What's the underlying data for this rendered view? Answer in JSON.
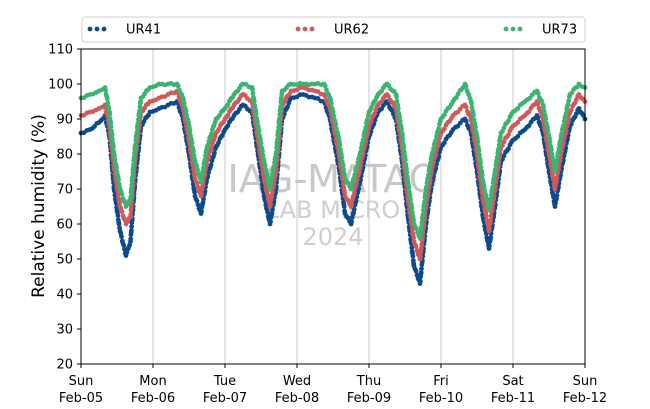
{
  "chart_data": {
    "type": "scatter",
    "title": "",
    "xlabel": "",
    "ylabel": "Relative humidity (%)",
    "ylim": [
      20,
      110
    ],
    "yticks": [
      20,
      30,
      40,
      50,
      60,
      70,
      80,
      90,
      100,
      110
    ],
    "xlim": [
      "2024-02-05 00:00",
      "2024-02-12 00:00"
    ],
    "xticks": [
      {
        "day": "Sun",
        "date": "Feb-05"
      },
      {
        "day": "Mon",
        "date": "Feb-06"
      },
      {
        "day": "Tue",
        "date": "Feb-07"
      },
      {
        "day": "Wed",
        "date": "Feb-08"
      },
      {
        "day": "Thu",
        "date": "Feb-09"
      },
      {
        "day": "Fri",
        "date": "Feb-10"
      },
      {
        "day": "Sat",
        "date": "Feb-11"
      },
      {
        "day": "Sun",
        "date": "Feb-12"
      }
    ],
    "grid": "vertical",
    "legend_placement": "top",
    "watermark": [
      "IAG-MATAO",
      "LAB MICRO",
      "2024"
    ],
    "series": [
      {
        "name": "UR41",
        "color": "#0c4a8c",
        "points": [
          [
            "2024-02-05 00:00",
            86
          ],
          [
            "2024-02-05 03:00",
            87
          ],
          [
            "2024-02-05 06:00",
            89
          ],
          [
            "2024-02-05 08:00",
            91
          ],
          [
            "2024-02-05 09:30",
            85
          ],
          [
            "2024-02-05 11:00",
            70
          ],
          [
            "2024-02-05 13:00",
            58
          ],
          [
            "2024-02-05 15:00",
            51
          ],
          [
            "2024-02-05 16:30",
            55
          ],
          [
            "2024-02-05 18:00",
            72
          ],
          [
            "2024-02-05 20:00",
            88
          ],
          [
            "2024-02-05 23:00",
            92
          ],
          [
            "2024-02-06 02:00",
            93
          ],
          [
            "2024-02-06 05:00",
            94
          ],
          [
            "2024-02-06 08:00",
            95
          ],
          [
            "2024-02-06 10:00",
            90
          ],
          [
            "2024-02-06 12:00",
            80
          ],
          [
            "2024-02-06 14:00",
            68
          ],
          [
            "2024-02-06 16:00",
            63
          ],
          [
            "2024-02-06 18:00",
            73
          ],
          [
            "2024-02-06 21:00",
            82
          ],
          [
            "2024-02-07 00:00",
            87
          ],
          [
            "2024-02-07 03:00",
            91
          ],
          [
            "2024-02-07 06:00",
            94
          ],
          [
            "2024-02-07 09:00",
            92
          ],
          [
            "2024-02-07 11:00",
            80
          ],
          [
            "2024-02-07 13:00",
            68
          ],
          [
            "2024-02-07 15:00",
            60
          ],
          [
            "2024-02-07 17:00",
            70
          ],
          [
            "2024-02-07 19:00",
            90
          ],
          [
            "2024-02-07 22:00",
            96
          ],
          [
            "2024-02-08 02:00",
            97
          ],
          [
            "2024-02-08 06:00",
            96
          ],
          [
            "2024-02-08 09:00",
            95
          ],
          [
            "2024-02-08 11:00",
            90
          ],
          [
            "2024-02-08 14:00",
            76
          ],
          [
            "2024-02-08 16:00",
            63
          ],
          [
            "2024-02-08 18:00",
            60
          ],
          [
            "2024-02-08 21:00",
            72
          ],
          [
            "2024-02-09 00:00",
            85
          ],
          [
            "2024-02-09 03:00",
            92
          ],
          [
            "2024-02-09 06:00",
            95
          ],
          [
            "2024-02-09 09:00",
            90
          ],
          [
            "2024-02-09 11:00",
            78
          ],
          [
            "2024-02-09 13:00",
            62
          ],
          [
            "2024-02-09 15:00",
            48
          ],
          [
            "2024-02-09 17:00",
            43
          ],
          [
            "2024-02-09 19:00",
            60
          ],
          [
            "2024-02-09 21:00",
            72
          ],
          [
            "2024-02-10 00:00",
            82
          ],
          [
            "2024-02-10 04:00",
            87
          ],
          [
            "2024-02-10 08:00",
            90
          ],
          [
            "2024-02-10 10:00",
            86
          ],
          [
            "2024-02-10 12:00",
            75
          ],
          [
            "2024-02-10 14:00",
            62
          ],
          [
            "2024-02-10 16:00",
            53
          ],
          [
            "2024-02-10 18:00",
            65
          ],
          [
            "2024-02-10 20:00",
            78
          ],
          [
            "2024-02-11 00:00",
            84
          ],
          [
            "2024-02-11 04:00",
            87
          ],
          [
            "2024-02-11 08:00",
            91
          ],
          [
            "2024-02-11 10:00",
            86
          ],
          [
            "2024-02-11 12:00",
            75
          ],
          [
            "2024-02-11 14:00",
            65
          ],
          [
            "2024-02-11 16:00",
            75
          ],
          [
            "2024-02-11 19:00",
            88
          ],
          [
            "2024-02-11 22:00",
            93
          ],
          [
            "2024-02-12 00:00",
            90
          ]
        ]
      },
      {
        "name": "UR62",
        "color": "#d05a5a",
        "points": [
          [
            "2024-02-05 00:00",
            91
          ],
          [
            "2024-02-05 03:00",
            92
          ],
          [
            "2024-02-05 06:00",
            93
          ],
          [
            "2024-02-05 08:00",
            94
          ],
          [
            "2024-02-05 09:30",
            88
          ],
          [
            "2024-02-05 11:00",
            76
          ],
          [
            "2024-02-05 13:00",
            65
          ],
          [
            "2024-02-05 15:00",
            60
          ],
          [
            "2024-02-05 16:30",
            62
          ],
          [
            "2024-02-05 18:00",
            78
          ],
          [
            "2024-02-05 20:00",
            92
          ],
          [
            "2024-02-05 23:00",
            95
          ],
          [
            "2024-02-06 02:00",
            96
          ],
          [
            "2024-02-06 05:00",
            97
          ],
          [
            "2024-02-06 08:00",
            98
          ],
          [
            "2024-02-06 10:00",
            93
          ],
          [
            "2024-02-06 12:00",
            84
          ],
          [
            "2024-02-06 14:00",
            73
          ],
          [
            "2024-02-06 16:00",
            68
          ],
          [
            "2024-02-06 18:00",
            78
          ],
          [
            "2024-02-06 21:00",
            86
          ],
          [
            "2024-02-07 00:00",
            90
          ],
          [
            "2024-02-07 03:00",
            94
          ],
          [
            "2024-02-07 06:00",
            97
          ],
          [
            "2024-02-07 09:00",
            95
          ],
          [
            "2024-02-07 11:00",
            84
          ],
          [
            "2024-02-07 13:00",
            73
          ],
          [
            "2024-02-07 15:00",
            65
          ],
          [
            "2024-02-07 17:00",
            75
          ],
          [
            "2024-02-07 19:00",
            94
          ],
          [
            "2024-02-07 22:00",
            98
          ],
          [
            "2024-02-08 02:00",
            99
          ],
          [
            "2024-02-08 06:00",
            98
          ],
          [
            "2024-02-08 09:00",
            97
          ],
          [
            "2024-02-08 11:00",
            93
          ],
          [
            "2024-02-08 14:00",
            80
          ],
          [
            "2024-02-08 16:00",
            68
          ],
          [
            "2024-02-08 18:00",
            65
          ],
          [
            "2024-02-08 21:00",
            76
          ],
          [
            "2024-02-09 00:00",
            88
          ],
          [
            "2024-02-09 03:00",
            94
          ],
          [
            "2024-02-09 06:00",
            97
          ],
          [
            "2024-02-09 09:00",
            93
          ],
          [
            "2024-02-09 11:00",
            82
          ],
          [
            "2024-02-09 13:00",
            67
          ],
          [
            "2024-02-09 15:00",
            55
          ],
          [
            "2024-02-09 17:00",
            50
          ],
          [
            "2024-02-09 19:00",
            65
          ],
          [
            "2024-02-09 21:00",
            76
          ],
          [
            "2024-02-10 00:00",
            86
          ],
          [
            "2024-02-10 04:00",
            91
          ],
          [
            "2024-02-10 08:00",
            94
          ],
          [
            "2024-02-10 10:00",
            90
          ],
          [
            "2024-02-10 12:00",
            80
          ],
          [
            "2024-02-10 14:00",
            67
          ],
          [
            "2024-02-10 16:00",
            58
          ],
          [
            "2024-02-10 18:00",
            70
          ],
          [
            "2024-02-10 20:00",
            82
          ],
          [
            "2024-02-11 00:00",
            88
          ],
          [
            "2024-02-11 04:00",
            91
          ],
          [
            "2024-02-11 08:00",
            95
          ],
          [
            "2024-02-11 10:00",
            90
          ],
          [
            "2024-02-11 12:00",
            80
          ],
          [
            "2024-02-11 14:00",
            70
          ],
          [
            "2024-02-11 16:00",
            80
          ],
          [
            "2024-02-11 19:00",
            92
          ],
          [
            "2024-02-11 22:00",
            97
          ],
          [
            "2024-02-12 00:00",
            95
          ]
        ]
      },
      {
        "name": "UR73",
        "color": "#3cb371",
        "points": [
          [
            "2024-02-05 00:00",
            96
          ],
          [
            "2024-02-05 03:00",
            97
          ],
          [
            "2024-02-05 06:00",
            98
          ],
          [
            "2024-02-05 08:00",
            99
          ],
          [
            "2024-02-05 09:30",
            92
          ],
          [
            "2024-02-05 11:00",
            80
          ],
          [
            "2024-02-05 13:00",
            70
          ],
          [
            "2024-02-05 15:00",
            65
          ],
          [
            "2024-02-05 16:30",
            67
          ],
          [
            "2024-02-05 18:00",
            82
          ],
          [
            "2024-02-05 20:00",
            96
          ],
          [
            "2024-02-05 23:00",
            99
          ],
          [
            "2024-02-06 02:00",
            100
          ],
          [
            "2024-02-06 05:00",
            100
          ],
          [
            "2024-02-06 08:00",
            100
          ],
          [
            "2024-02-06 10:00",
            96
          ],
          [
            "2024-02-06 12:00",
            88
          ],
          [
            "2024-02-06 14:00",
            78
          ],
          [
            "2024-02-06 16:00",
            72
          ],
          [
            "2024-02-06 18:00",
            82
          ],
          [
            "2024-02-06 21:00",
            90
          ],
          [
            "2024-02-07 00:00",
            93
          ],
          [
            "2024-02-07 03:00",
            97
          ],
          [
            "2024-02-07 06:00",
            100
          ],
          [
            "2024-02-07 09:00",
            99
          ],
          [
            "2024-02-07 11:00",
            88
          ],
          [
            "2024-02-07 13:00",
            78
          ],
          [
            "2024-02-07 15:00",
            70
          ],
          [
            "2024-02-07 17:00",
            80
          ],
          [
            "2024-02-07 19:00",
            98
          ],
          [
            "2024-02-07 22:00",
            100
          ],
          [
            "2024-02-08 02:00",
            100
          ],
          [
            "2024-02-08 06:00",
            100
          ],
          [
            "2024-02-08 09:00",
            100
          ],
          [
            "2024-02-08 11:00",
            96
          ],
          [
            "2024-02-08 14:00",
            84
          ],
          [
            "2024-02-08 16:00",
            73
          ],
          [
            "2024-02-08 18:00",
            70
          ],
          [
            "2024-02-08 21:00",
            80
          ],
          [
            "2024-02-09 00:00",
            92
          ],
          [
            "2024-02-09 03:00",
            97
          ],
          [
            "2024-02-09 06:00",
            100
          ],
          [
            "2024-02-09 09:00",
            97
          ],
          [
            "2024-02-09 11:00",
            86
          ],
          [
            "2024-02-09 13:00",
            72
          ],
          [
            "2024-02-09 15:00",
            60
          ],
          [
            "2024-02-09 17:00",
            56
          ],
          [
            "2024-02-09 19:00",
            70
          ],
          [
            "2024-02-09 21:00",
            80
          ],
          [
            "2024-02-10 00:00",
            90
          ],
          [
            "2024-02-10 04:00",
            95
          ],
          [
            "2024-02-10 08:00",
            100
          ],
          [
            "2024-02-10 10:00",
            95
          ],
          [
            "2024-02-10 12:00",
            85
          ],
          [
            "2024-02-10 14:00",
            72
          ],
          [
            "2024-02-10 16:00",
            64
          ],
          [
            "2024-02-10 18:00",
            75
          ],
          [
            "2024-02-10 20:00",
            86
          ],
          [
            "2024-02-11 00:00",
            92
          ],
          [
            "2024-02-11 04:00",
            95
          ],
          [
            "2024-02-11 08:00",
            98
          ],
          [
            "2024-02-11 10:00",
            94
          ],
          [
            "2024-02-11 12:00",
            85
          ],
          [
            "2024-02-11 14:00",
            75
          ],
          [
            "2024-02-11 16:00",
            85
          ],
          [
            "2024-02-11 19:00",
            97
          ],
          [
            "2024-02-11 22:00",
            100
          ],
          [
            "2024-02-12 00:00",
            99
          ]
        ]
      }
    ]
  }
}
